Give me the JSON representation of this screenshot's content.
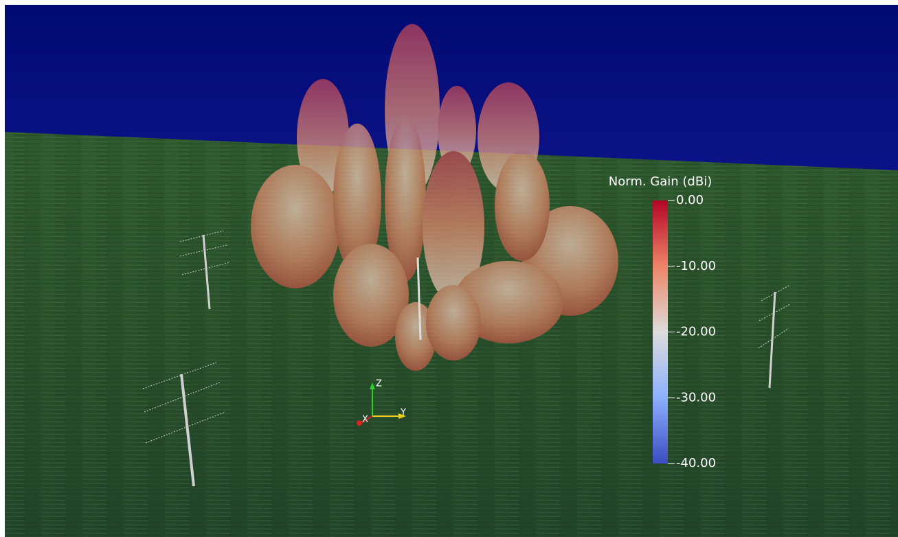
{
  "colorbar": {
    "title": "Norm. Gain (dBi)",
    "range": [
      -40,
      0
    ],
    "ticks": [
      {
        "value": 0,
        "label": "0.00"
      },
      {
        "value": -10,
        "label": "-10.00"
      },
      {
        "value": -20,
        "label": "-20.00"
      },
      {
        "value": -30,
        "label": "-30.00"
      },
      {
        "value": -40,
        "label": "-40.00"
      }
    ]
  },
  "axes_triad": {
    "z": "Z",
    "y": "Y",
    "x": "X"
  }
}
